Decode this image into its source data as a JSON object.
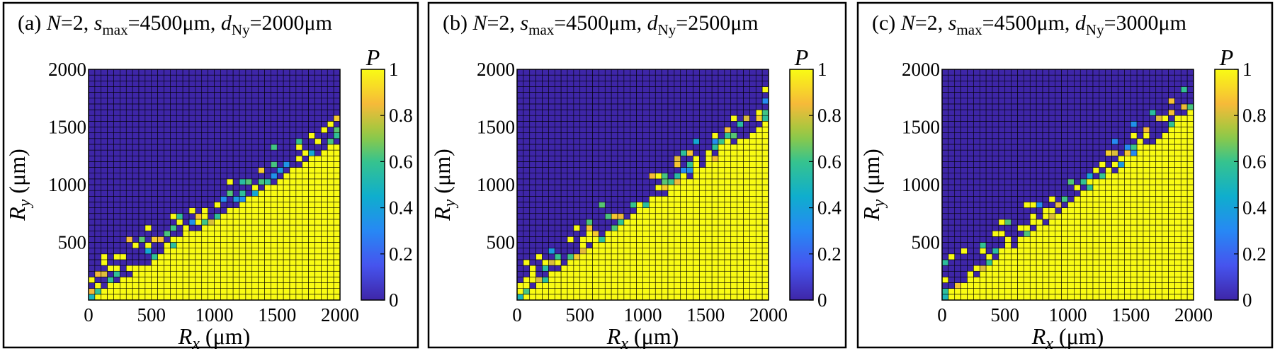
{
  "chart_data": [
    {
      "type": "heatmap",
      "panel": "(a)",
      "title_parts": {
        "N": "2",
        "s_max": "4500μm",
        "d_Ny": "2000μm"
      },
      "xlabel": {
        "symbol": "R",
        "sub": "x",
        "unit": "(μm)"
      },
      "ylabel": {
        "symbol": "R",
        "sub": "y",
        "unit": "(μm)"
      },
      "xlim": [
        0,
        2000
      ],
      "ylim": [
        0,
        2000
      ],
      "xticks": [
        "0",
        "500",
        "1000",
        "1500",
        "2000"
      ],
      "yticks": [
        "500",
        "1000",
        "1500",
        "2000"
      ],
      "grid_size": 40,
      "colorbar": {
        "label": "P",
        "range": [
          0,
          1
        ],
        "ticks": [
          "0",
          "0.2",
          "0.4",
          "0.6",
          "0.8",
          "1"
        ]
      },
      "boundary": {
        "slope": 0.7,
        "sprinkle_width": 6,
        "seed": 17
      },
      "colormap": "parula"
    },
    {
      "type": "heatmap",
      "panel": "(b)",
      "title_parts": {
        "N": "2",
        "s_max": "4500μm",
        "d_Ny": "2500μm"
      },
      "xlabel": {
        "symbol": "R",
        "sub": "x",
        "unit": "(μm)"
      },
      "ylabel": {
        "symbol": "R",
        "sub": "y",
        "unit": "(μm)"
      },
      "xlim": [
        0,
        2000
      ],
      "ylim": [
        0,
        2000
      ],
      "xticks": [
        "0",
        "500",
        "1000",
        "1500",
        "2000"
      ],
      "yticks": [
        "500",
        "1000",
        "1500",
        "2000"
      ],
      "grid_size": 40,
      "colorbar": {
        "label": "P",
        "range": [
          0,
          1
        ],
        "ticks": [
          "0",
          "0.2",
          "0.4",
          "0.6",
          "0.8",
          "1"
        ]
      },
      "boundary": {
        "slope": 0.78,
        "sprinkle_width": 6,
        "seed": 53
      },
      "colormap": "parula"
    },
    {
      "type": "heatmap",
      "panel": "(c)",
      "title_parts": {
        "N": "2",
        "s_max": "4500μm",
        "d_Ny": "3000μm"
      },
      "xlabel": {
        "symbol": "R",
        "sub": "x",
        "unit": "(μm)"
      },
      "ylabel": {
        "symbol": "R",
        "sub": "y",
        "unit": "(μm)"
      },
      "xlim": [
        0,
        2000
      ],
      "ylim": [
        0,
        2000
      ],
      "xticks": [
        "0",
        "500",
        "1000",
        "1500",
        "2000"
      ],
      "yticks": [
        "500",
        "1000",
        "1500",
        "2000"
      ],
      "grid_size": 40,
      "colorbar": {
        "label": "P",
        "range": [
          0,
          1
        ],
        "ticks": [
          "0",
          "0.2",
          "0.4",
          "0.6",
          "0.8",
          "1"
        ]
      },
      "boundary": {
        "slope": 0.82,
        "sprinkle_width": 6,
        "seed": 91
      },
      "colormap": "parula"
    }
  ]
}
